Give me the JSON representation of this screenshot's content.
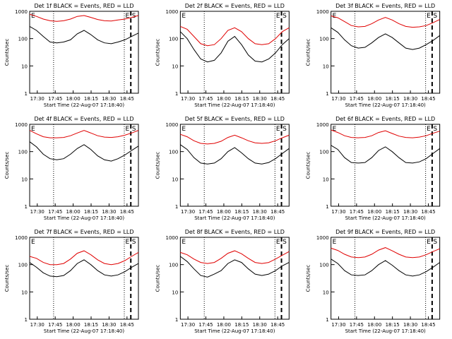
{
  "page": {
    "background": "#ffffff"
  },
  "colors": {
    "events": "#000000",
    "lld": "#e00000",
    "axis": "#000000"
  },
  "chart_data": {
    "type": "line",
    "layout": "3x3 grid",
    "y_scale": "log",
    "ylim": [
      1,
      1000
    ],
    "ytick_labels": [
      "1",
      "10",
      "100",
      "1000"
    ],
    "xtick_labels": [
      "17:30",
      "17:45",
      "18:00",
      "18:15",
      "18:30",
      "18:45"
    ],
    "xlabel": "Start Time (22-Aug-07 17:18:40)",
    "ylabel": "Counts/sec",
    "markers": {
      "E": "E",
      "S": "S"
    },
    "panels": [
      {
        "title": "Det 1f BLACK = Events, RED = LLD",
        "events": [
          280,
          200,
          120,
          75,
          70,
          75,
          90,
          150,
          200,
          140,
          90,
          70,
          65,
          75,
          90,
          120,
          160
        ],
        "lld": [
          780,
          650,
          520,
          450,
          430,
          450,
          520,
          650,
          700,
          600,
          500,
          450,
          440,
          480,
          520,
          600,
          700
        ]
      },
      {
        "title": "Det 2f BLACK = Events, RED = LLD",
        "events": [
          180,
          100,
          40,
          18,
          14,
          16,
          30,
          80,
          120,
          60,
          25,
          15,
          14,
          18,
          30,
          60,
          100
        ],
        "lld": [
          280,
          220,
          120,
          65,
          55,
          60,
          100,
          200,
          250,
          180,
          100,
          65,
          60,
          65,
          100,
          180,
          250
        ]
      },
      {
        "title": "Det 3f BLACK = Events, RED = LLD",
        "events": [
          250,
          170,
          90,
          55,
          45,
          48,
          70,
          110,
          150,
          110,
          70,
          45,
          40,
          45,
          60,
          85,
          130
        ],
        "lld": [
          680,
          580,
          420,
          300,
          270,
          280,
          350,
          480,
          600,
          480,
          350,
          280,
          260,
          270,
          300,
          380,
          500
        ]
      },
      {
        "title": "Det 4f BLACK = Events, RED = LLD",
        "events": [
          230,
          150,
          80,
          55,
          50,
          55,
          80,
          130,
          180,
          120,
          70,
          50,
          45,
          55,
          75,
          110,
          160
        ],
        "lld": [
          600,
          450,
          350,
          320,
          320,
          330,
          380,
          480,
          600,
          480,
          380,
          340,
          330,
          350,
          400,
          480,
          600
        ]
      },
      {
        "title": "Det 5f BLACK = Events, RED = LLD",
        "events": [
          180,
          120,
          60,
          38,
          35,
          38,
          55,
          100,
          140,
          90,
          55,
          38,
          35,
          40,
          55,
          85,
          130
        ],
        "lld": [
          430,
          350,
          250,
          200,
          190,
          200,
          240,
          330,
          400,
          320,
          250,
          210,
          200,
          210,
          250,
          320,
          400
        ]
      },
      {
        "title": "Det 6f BLACK = Events, RED = LLD",
        "events": [
          170,
          120,
          60,
          40,
          38,
          40,
          60,
          110,
          150,
          100,
          60,
          40,
          38,
          42,
          55,
          85,
          130
        ],
        "lld": [
          620,
          500,
          380,
          330,
          320,
          330,
          380,
          500,
          580,
          460,
          370,
          330,
          320,
          340,
          380,
          470,
          560
        ]
      },
      {
        "title": "Det 7f BLACK = Events, RED = LLD",
        "events": [
          120,
          80,
          50,
          38,
          36,
          40,
          60,
          110,
          150,
          100,
          60,
          42,
          38,
          42,
          55,
          80,
          110
        ],
        "lld": [
          200,
          170,
          120,
          100,
          100,
          110,
          160,
          260,
          320,
          230,
          150,
          110,
          100,
          110,
          140,
          200,
          280
        ]
      },
      {
        "title": "Det 8f BLACK = Events, RED = LLD",
        "events": [
          200,
          130,
          70,
          40,
          35,
          45,
          60,
          110,
          150,
          120,
          70,
          45,
          40,
          45,
          60,
          90,
          120
        ],
        "lld": [
          280,
          230,
          160,
          120,
          110,
          120,
          170,
          260,
          320,
          250,
          170,
          120,
          110,
          120,
          160,
          220,
          300
        ]
      },
      {
        "title": "Det 9f BLACK = Events, RED = LLD",
        "events": [
          160,
          110,
          60,
          42,
          40,
          42,
          60,
          100,
          140,
          95,
          60,
          42,
          38,
          42,
          55,
          80,
          120
        ],
        "lld": [
          400,
          330,
          240,
          190,
          180,
          190,
          240,
          340,
          420,
          320,
          240,
          190,
          180,
          190,
          230,
          300,
          380
        ]
      }
    ]
  }
}
